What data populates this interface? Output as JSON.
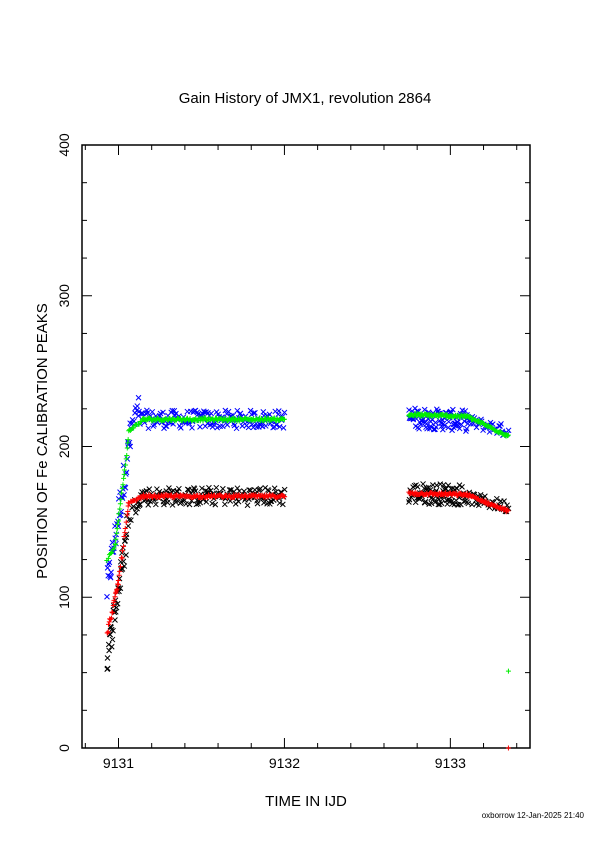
{
  "chart_data": {
    "type": "scatter",
    "title": "Gain History of JMX1, revolution 2864",
    "xlabel": "TIME IN IJD",
    "ylabel": "POSITION OF Fe CALIBRATION PEAKS",
    "xlim": [
      9130.78,
      9133.48
    ],
    "ylim": [
      0,
      400
    ],
    "x_ticks": [
      9131,
      9132,
      9133
    ],
    "y_ticks": [
      0,
      100,
      200,
      300,
      400
    ],
    "grid": false,
    "legend": "none",
    "series": [
      {
        "marker": "x",
        "color": "#0000ff",
        "segments": [
          {
            "x0": 9130.93,
            "x1": 9131.07,
            "y0": 105,
            "y1": 205,
            "n": 40,
            "jitter": 12
          },
          {
            "x0": 9131.07,
            "x1": 9131.12,
            "y0": 210,
            "y1": 228,
            "n": 10,
            "jitter": 6
          },
          {
            "x0": 9131.12,
            "x1": 9132.0,
            "y0": 218,
            "y1": 218,
            "n": 160,
            "jitter": 6
          },
          {
            "x0": 9132.75,
            "x1": 9133.1,
            "y0": 219,
            "y1": 217,
            "n": 90,
            "jitter": 7
          },
          {
            "x0": 9133.1,
            "x1": 9133.35,
            "y0": 217,
            "y1": 210,
            "n": 40,
            "jitter": 4
          }
        ]
      },
      {
        "marker": "x",
        "color": "#000000",
        "segments": [
          {
            "x0": 9130.93,
            "x1": 9131.05,
            "y0": 58,
            "y1": 140,
            "n": 40,
            "jitter": 10
          },
          {
            "x0": 9131.05,
            "x1": 9131.12,
            "y0": 150,
            "y1": 165,
            "n": 10,
            "jitter": 6
          },
          {
            "x0": 9131.12,
            "x1": 9132.0,
            "y0": 167,
            "y1": 167,
            "n": 160,
            "jitter": 6
          },
          {
            "x0": 9132.75,
            "x1": 9133.1,
            "y0": 169,
            "y1": 168,
            "n": 90,
            "jitter": 7
          },
          {
            "x0": 9133.1,
            "x1": 9133.35,
            "y0": 166,
            "y1": 160,
            "n": 40,
            "jitter": 4
          }
        ]
      },
      {
        "marker": "+",
        "color": "#00ee00",
        "segments": [
          {
            "x0": 9130.93,
            "x1": 9130.98,
            "y0": 125,
            "y1": 135,
            "n": 8,
            "jitter": 1
          },
          {
            "x0": 9130.98,
            "x1": 9131.06,
            "y0": 135,
            "y1": 205,
            "n": 22,
            "jitter": 1
          },
          {
            "x0": 9131.06,
            "x1": 9131.15,
            "y0": 210,
            "y1": 218,
            "n": 15,
            "jitter": 1
          },
          {
            "x0": 9131.15,
            "x1": 9132.0,
            "y0": 218,
            "y1": 218,
            "n": 160,
            "jitter": 1
          },
          {
            "x0": 9132.75,
            "x1": 9133.1,
            "y0": 221,
            "y1": 220,
            "n": 80,
            "jitter": 1
          },
          {
            "x0": 9133.1,
            "x1": 9133.35,
            "y0": 220,
            "y1": 207,
            "n": 50,
            "jitter": 1
          }
        ],
        "extra_points": [
          [
            9133.35,
            51
          ]
        ]
      },
      {
        "marker": "+",
        "color": "#ff0000",
        "segments": [
          {
            "x0": 9130.93,
            "x1": 9131.0,
            "y0": 75,
            "y1": 110,
            "n": 20,
            "jitter": 2
          },
          {
            "x0": 9131.0,
            "x1": 9131.06,
            "y0": 110,
            "y1": 160,
            "n": 15,
            "jitter": 2
          },
          {
            "x0": 9131.06,
            "x1": 9131.15,
            "y0": 162,
            "y1": 167,
            "n": 15,
            "jitter": 1
          },
          {
            "x0": 9131.15,
            "x1": 9132.0,
            "y0": 167,
            "y1": 167,
            "n": 160,
            "jitter": 1
          },
          {
            "x0": 9132.75,
            "x1": 9133.1,
            "y0": 169,
            "y1": 168,
            "n": 80,
            "jitter": 1
          },
          {
            "x0": 9133.1,
            "x1": 9133.35,
            "y0": 168,
            "y1": 157,
            "n": 50,
            "jitter": 1
          }
        ],
        "extra_points": [
          [
            9133.35,
            0
          ]
        ]
      }
    ]
  },
  "footer": "oxborrow 12-Jan-2025 21:40"
}
